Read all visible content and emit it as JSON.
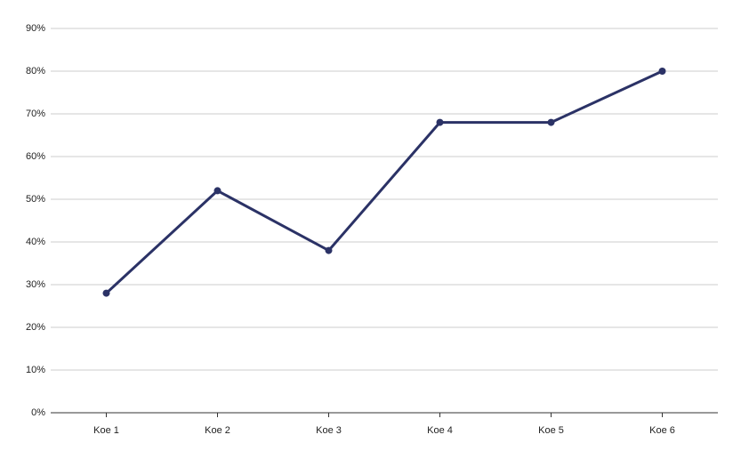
{
  "chart_data": {
    "type": "line",
    "categories": [
      "Koe 1",
      "Koe 2",
      "Koe 3",
      "Koe 4",
      "Koe 5",
      "Koe 6"
    ],
    "series": [
      {
        "color": "#2b3266",
        "values": [
          28,
          52,
          38,
          68,
          68,
          80
        ]
      }
    ],
    "ylim": [
      0,
      90
    ],
    "yticks": [
      {
        "value": 0,
        "label": "0%"
      },
      {
        "value": 10,
        "label": "10%"
      },
      {
        "value": 20,
        "label": "20%"
      },
      {
        "value": 30,
        "label": "30%"
      },
      {
        "value": 40,
        "label": "40%"
      },
      {
        "value": 50,
        "label": "50%"
      },
      {
        "value": 60,
        "label": "60%"
      },
      {
        "value": 70,
        "label": "70%"
      },
      {
        "value": 80,
        "label": "80%"
      },
      {
        "value": 90,
        "label": "90%"
      }
    ],
    "grid": true
  }
}
